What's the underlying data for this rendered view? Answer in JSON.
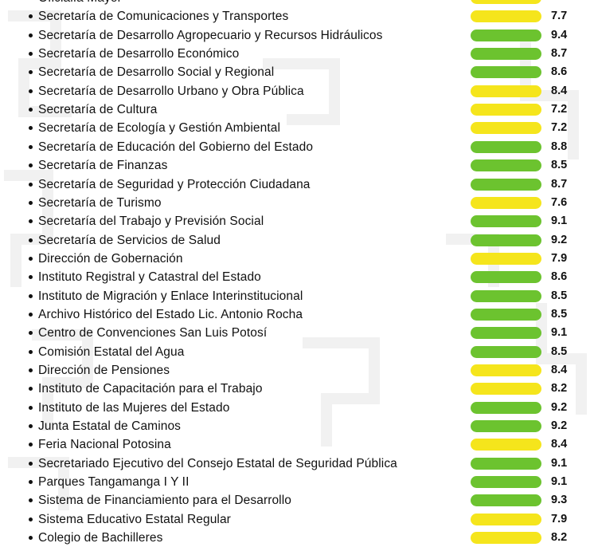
{
  "colors": {
    "green": "#6cc32f",
    "yellow": "#f5e51c"
  },
  "chart_data": {
    "type": "bar",
    "categories": [
      "Oficialía Mayor",
      "Secretaría de Comunicaciones y Transportes",
      "Secretaría de Desarrollo Agropecuario y Recursos Hidráulicos",
      "Secretaría de Desarrollo Económico",
      "Secretaría de Desarrollo Social y Regional",
      "Secretaría de Desarrollo Urbano y Obra Pública",
      "Secretaría de Cultura",
      "Secretaría de Ecología y Gestión Ambiental",
      "Secretaría de Educación del Gobierno del Estado",
      "Secretaría de Finanzas",
      "Secretaría de Seguridad y Protección Ciudadana",
      "Secretaría de Turismo",
      "Secretaría del Trabajo y Previsión Social",
      "Secretaría de Servicios de Salud",
      "Dirección de Gobernación",
      "Instituto Registral y Catastral del Estado",
      "Instituto de Migración y Enlace Interinstitucional",
      "Archivo Histórico del Estado Lic. Antonio Rocha",
      "Centro de Convenciones San Luis Potosí",
      "Comisión Estatal del Agua",
      "Dirección de Pensiones",
      "Instituto de Capacitación para el Trabajo",
      "Instituto de las Mujeres del Estado",
      "Junta Estatal de Caminos",
      "Feria Nacional Potosina",
      "Secretariado Ejecutivo del Consejo Estatal de Seguridad Pública",
      "Parques Tangamanga I Y II",
      "Sistema de Financiamiento para el Desarrollo",
      "Sistema Educativo Estatal Regular",
      "Colegio de Bachilleres"
    ],
    "values": [
      null,
      7.7,
      9.4,
      8.7,
      8.6,
      8.4,
      7.2,
      7.2,
      8.8,
      8.5,
      8.7,
      7.6,
      9.1,
      9.2,
      7.9,
      8.6,
      8.5,
      8.5,
      9.1,
      8.5,
      8.4,
      8.2,
      9.2,
      9.2,
      8.4,
      9.1,
      9.1,
      9.3,
      7.9,
      8.2
    ],
    "value_labels": [
      "",
      "7.7",
      "9.4",
      "8.7",
      "8.6",
      "8.4",
      "7.2",
      "7.2",
      "8.8",
      "8.5",
      "8.7",
      "7.6",
      "9.1",
      "9.2",
      "7.9",
      "8.6",
      "8.5",
      "8.5",
      "9.1",
      "8.5",
      "8.4",
      "8.2",
      "9.2",
      "9.2",
      "8.4",
      "9.1",
      "9.1",
      "9.3",
      "7.9",
      "8.2"
    ],
    "bar_colors": [
      "yellow",
      "yellow",
      "green",
      "green",
      "green",
      "yellow",
      "yellow",
      "yellow",
      "green",
      "green",
      "green",
      "yellow",
      "green",
      "green",
      "yellow",
      "green",
      "green",
      "green",
      "green",
      "green",
      "yellow",
      "yellow",
      "green",
      "green",
      "yellow",
      "green",
      "green",
      "green",
      "yellow",
      "yellow"
    ]
  }
}
